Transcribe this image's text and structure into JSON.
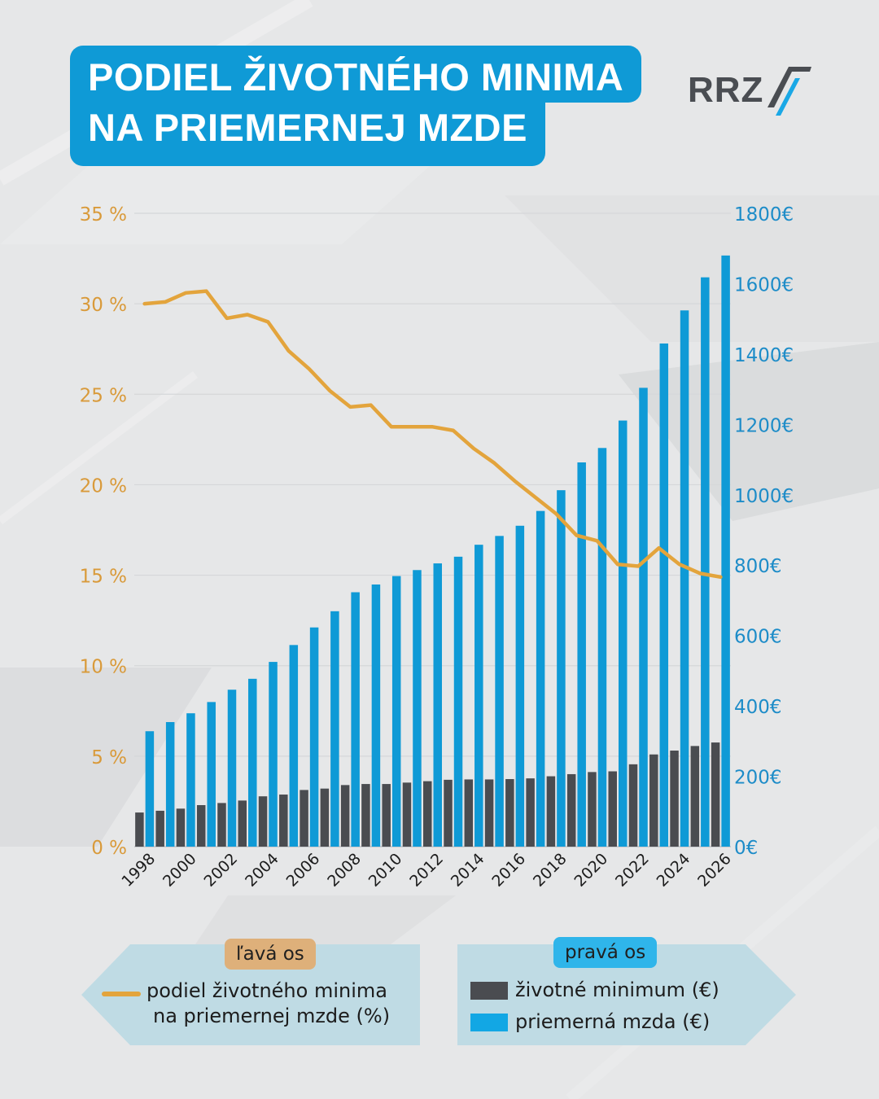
{
  "title": {
    "line1": "PODIEL ŽIVOTNÉHO MINIMA",
    "line2": "NA PRIEMERNEJ MZDE"
  },
  "logo": {
    "text": "RRZ",
    "icon": "rrz-slash-icon"
  },
  "colors": {
    "background": "#e6e7e8",
    "title_bg": "#0f9ad6",
    "line": "#e3a43c",
    "wage_bar": "#0f9ad6",
    "minimum_bar": "#4a4c50",
    "left_axis": "#d99a3a",
    "right_axis": "#1d8cc8",
    "legend_bg": "#bfdbe4"
  },
  "chart_data": {
    "type": "bar+line",
    "years": [
      1998,
      1999,
      2000,
      2001,
      2002,
      2003,
      2004,
      2005,
      2006,
      2007,
      2008,
      2009,
      2010,
      2011,
      2012,
      2013,
      2014,
      2015,
      2016,
      2017,
      2018,
      2019,
      2020,
      2021,
      2022,
      2023,
      2024,
      2025,
      2026
    ],
    "x_tick_labels": [
      "1998",
      "2000",
      "2002",
      "2004",
      "2006",
      "2008",
      "2010",
      "2012",
      "2014",
      "2016",
      "2018",
      "2020",
      "2022",
      "2024",
      "2026"
    ],
    "left_axis": {
      "label": "ľavá os",
      "ylim": [
        0,
        35
      ],
      "ticks": [
        "0 %",
        "5 %",
        "10 %",
        "15 %",
        "20 %",
        "25 %",
        "30 %",
        "35 %"
      ]
    },
    "right_axis": {
      "label": "pravá os",
      "ylim": [
        0,
        1800
      ],
      "ticks": [
        "0€",
        "200€",
        "400€",
        "600€",
        "800€",
        "1000€",
        "1200€",
        "1400€",
        "1600€",
        "1800€"
      ]
    },
    "series": [
      {
        "name": "životné minimum (€)",
        "axis": "right",
        "type": "bar",
        "values": [
          97,
          102,
          108,
          118,
          124,
          131,
          143,
          148,
          161,
          165,
          175,
          178,
          178,
          182,
          186,
          190,
          191,
          191,
          192,
          194,
          200,
          206,
          212,
          214,
          234,
          262,
          273,
          286,
          296
        ]
      },
      {
        "name": "priemerná mzda (€)",
        "axis": "right",
        "type": "bar",
        "values": [
          328,
          354,
          379,
          411,
          446,
          477,
          525,
          573,
          623,
          669,
          723,
          745,
          769,
          786,
          805,
          824,
          858,
          883,
          912,
          954,
          1013,
          1092,
          1133,
          1211,
          1304,
          1430,
          1524,
          1618,
          1680
        ]
      },
      {
        "name": "podiel životného minima na priemernej mzde (%)",
        "axis": "left",
        "type": "line",
        "values": [
          30.0,
          30.1,
          30.6,
          30.7,
          29.2,
          29.4,
          29.0,
          27.4,
          26.4,
          25.2,
          24.3,
          24.4,
          23.2,
          23.2,
          23.2,
          23.0,
          22.0,
          21.2,
          20.2,
          19.3,
          18.4,
          17.2,
          16.9,
          15.6,
          15.5,
          16.5,
          15.6,
          15.1,
          14.9
        ]
      }
    ]
  },
  "legend": {
    "left_tag": "ľavá os",
    "right_tag": "pravá os",
    "line_label_1": "podiel životného minima",
    "line_label_2": "na priemernej mzde (%)",
    "minimum_label": "životné minimum (€)",
    "wage_label": "priemerná mzda (€)"
  }
}
